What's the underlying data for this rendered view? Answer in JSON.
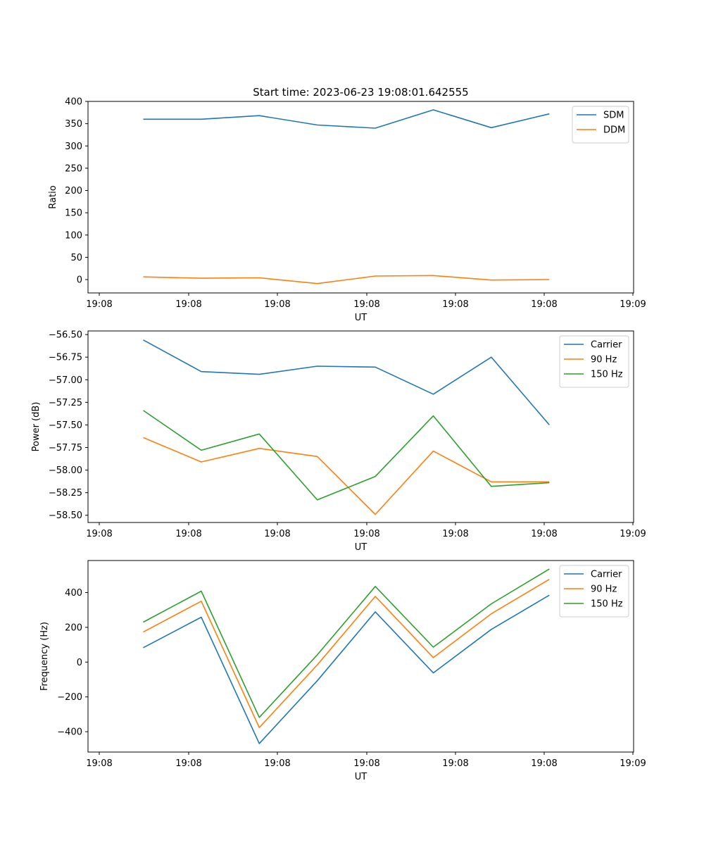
{
  "figure": {
    "title": "Start time: 2023-06-23 19:08:01.642555"
  },
  "chart_data": [
    {
      "type": "line",
      "title": "Start time: 2023-06-23 19:08:01.642555",
      "xlabel": "UT",
      "ylabel": "Ratio",
      "x_tick_labels": [
        "19:08",
        "19:08",
        "19:08",
        "19:08",
        "19:08",
        "19:08",
        "19:08"
      ],
      "x_tick_last": "19:09",
      "y_ticks": [
        0,
        50,
        100,
        150,
        200,
        250,
        300,
        350,
        400
      ],
      "ylim": [
        -30,
        400
      ],
      "legend_position": "top-right",
      "grid": false,
      "series": [
        {
          "name": "SDM",
          "color": "#1f77b4",
          "values": [
            360,
            360,
            368,
            347,
            340,
            381,
            341,
            372
          ]
        },
        {
          "name": "DDM",
          "color": "#ff7f0e",
          "values": [
            6,
            3,
            4,
            -9,
            8,
            9,
            -1,
            0
          ]
        }
      ]
    },
    {
      "type": "line",
      "xlabel": "UT",
      "ylabel": "Power (dB)",
      "x_tick_labels": [
        "19:08",
        "19:08",
        "19:08",
        "19:08",
        "19:08",
        "19:08",
        "19:08"
      ],
      "x_tick_last": "19:09",
      "y_ticks": [
        "−58.50",
        "−58.25",
        "−58.00",
        "−57.75",
        "−57.50",
        "−57.25",
        "−57.00",
        "−56.75",
        "−56.50"
      ],
      "y_tick_values": [
        -58.5,
        -58.25,
        -58.0,
        -57.75,
        -57.5,
        -57.25,
        -57.0,
        -56.75,
        -56.5
      ],
      "ylim": [
        -58.58,
        -56.46
      ],
      "legend_position": "top-right",
      "grid": false,
      "series": [
        {
          "name": "Carrier",
          "color": "#1f77b4",
          "values": [
            -56.56,
            -56.91,
            -56.94,
            -56.85,
            -56.86,
            -57.16,
            -56.75,
            -57.5
          ]
        },
        {
          "name": "90 Hz",
          "color": "#ff7f0e",
          "values": [
            -57.64,
            -57.91,
            -57.76,
            -57.85,
            -58.49,
            -57.79,
            -58.13,
            -58.13
          ]
        },
        {
          "name": "150 Hz",
          "color": "#2ca02c",
          "values": [
            -57.34,
            -57.78,
            -57.6,
            -58.33,
            -58.07,
            -57.4,
            -58.18,
            -58.14
          ]
        }
      ]
    },
    {
      "type": "line",
      "xlabel": "UT",
      "ylabel": "Frequency (Hz)",
      "x_tick_labels": [
        "19:08",
        "19:08",
        "19:08",
        "19:08",
        "19:08",
        "19:08",
        "19:08"
      ],
      "x_tick_last": "19:09",
      "y_ticks": [
        "−400",
        "−200",
        "0",
        "200",
        "400"
      ],
      "y_tick_values": [
        -400,
        -200,
        0,
        200,
        400
      ],
      "ylim": [
        -517,
        584
      ],
      "legend_position": "top-right",
      "grid": false,
      "series": [
        {
          "name": "Carrier",
          "color": "#1f77b4",
          "values": [
            83,
            258,
            -468,
            -107,
            289,
            -62,
            188,
            385
          ]
        },
        {
          "name": "90 Hz",
          "color": "#ff7f0e",
          "values": [
            173,
            350,
            -376,
            -16,
            378,
            26,
            278,
            476
          ]
        },
        {
          "name": "150 Hz",
          "color": "#2ca02c",
          "values": [
            230,
            408,
            -318,
            42,
            435,
            86,
            335,
            535
          ]
        }
      ]
    }
  ]
}
